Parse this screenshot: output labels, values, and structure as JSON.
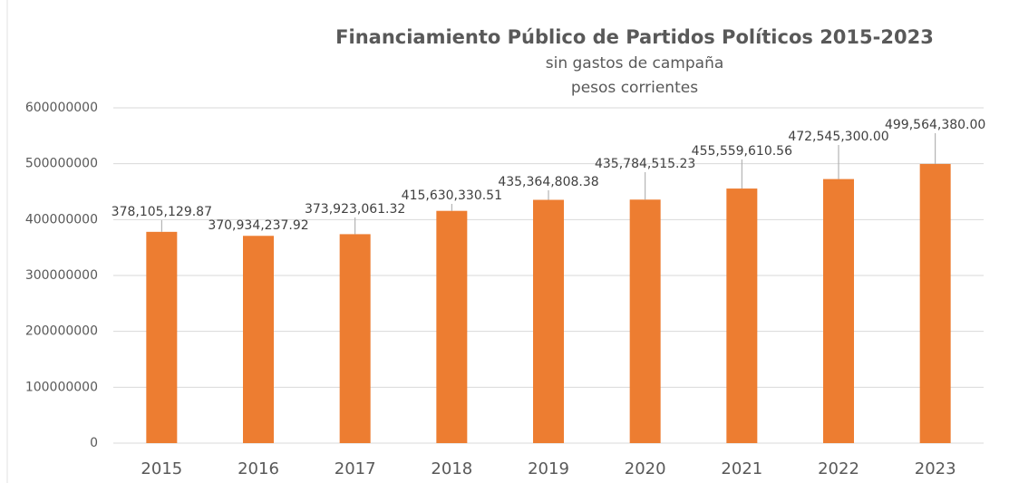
{
  "chart_data": {
    "type": "bar",
    "title": "Financiamiento Público de Partidos Políticos 2015-2023",
    "subtitle": [
      "sin gastos de campaña",
      "pesos corrientes"
    ],
    "categories": [
      "2015",
      "2016",
      "2017",
      "2018",
      "2019",
      "2020",
      "2021",
      "2022",
      "2023"
    ],
    "values": [
      378105129.87,
      370934237.92,
      373923061.32,
      415630330.51,
      435364808.38,
      435784515.23,
      455559610.56,
      472545300.0,
      499564380.0
    ],
    "value_labels": [
      "378,105,129.87",
      "370,934,237.92",
      "373,923,061.32",
      "415,630,330.51",
      "435,364,808.38",
      "435,784,515.23",
      "455,559,610.56",
      "472,545,300.00",
      "499,564,380.00"
    ],
    "color": "#ed7d31",
    "ylim": [
      0,
      600000000
    ],
    "yticks": [
      0,
      100000000,
      200000000,
      300000000,
      400000000,
      500000000,
      600000000
    ],
    "grid": true
  }
}
